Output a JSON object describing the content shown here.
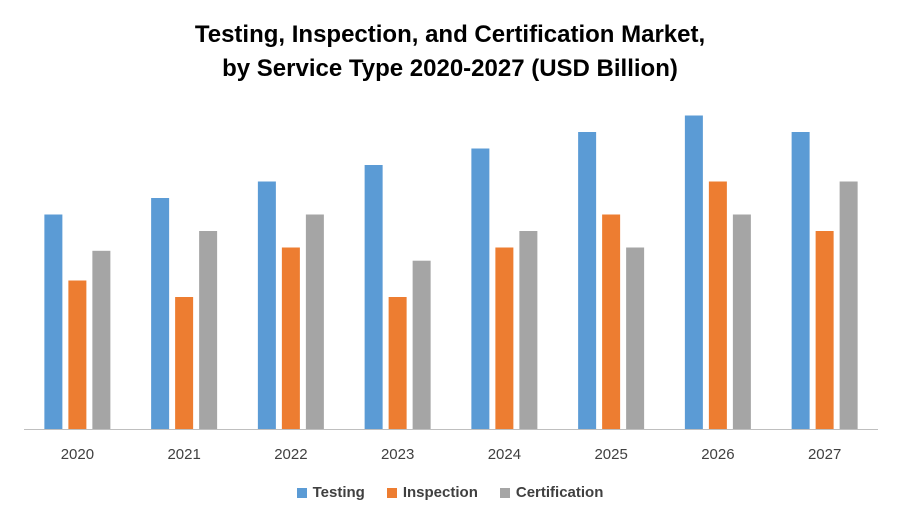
{
  "chart_data": {
    "type": "bar",
    "title": "Testing, Inspection, and Certification Market,",
    "subtitle": "by Service Type 2020-2027 (USD Billion)",
    "categories": [
      "2020",
      "2021",
      "2022",
      "2023",
      "2024",
      "2025",
      "2026",
      "2027"
    ],
    "series": [
      {
        "name": "Testing",
        "color": "#5B9BD5",
        "values": [
          6.5,
          7.0,
          7.5,
          8.0,
          8.5,
          9.0,
          9.5,
          9.0
        ]
      },
      {
        "name": "Inspection",
        "color": "#ED7D31",
        "values": [
          4.5,
          4.0,
          5.5,
          4.0,
          5.5,
          6.5,
          7.5,
          6.0
        ]
      },
      {
        "name": "Certification",
        "color": "#A5A5A5",
        "values": [
          5.4,
          6.0,
          6.5,
          5.1,
          6.0,
          5.5,
          6.5,
          7.5
        ]
      }
    ],
    "ylim": [
      0,
      10
    ],
    "grid": false,
    "legend_position": "bottom"
  }
}
